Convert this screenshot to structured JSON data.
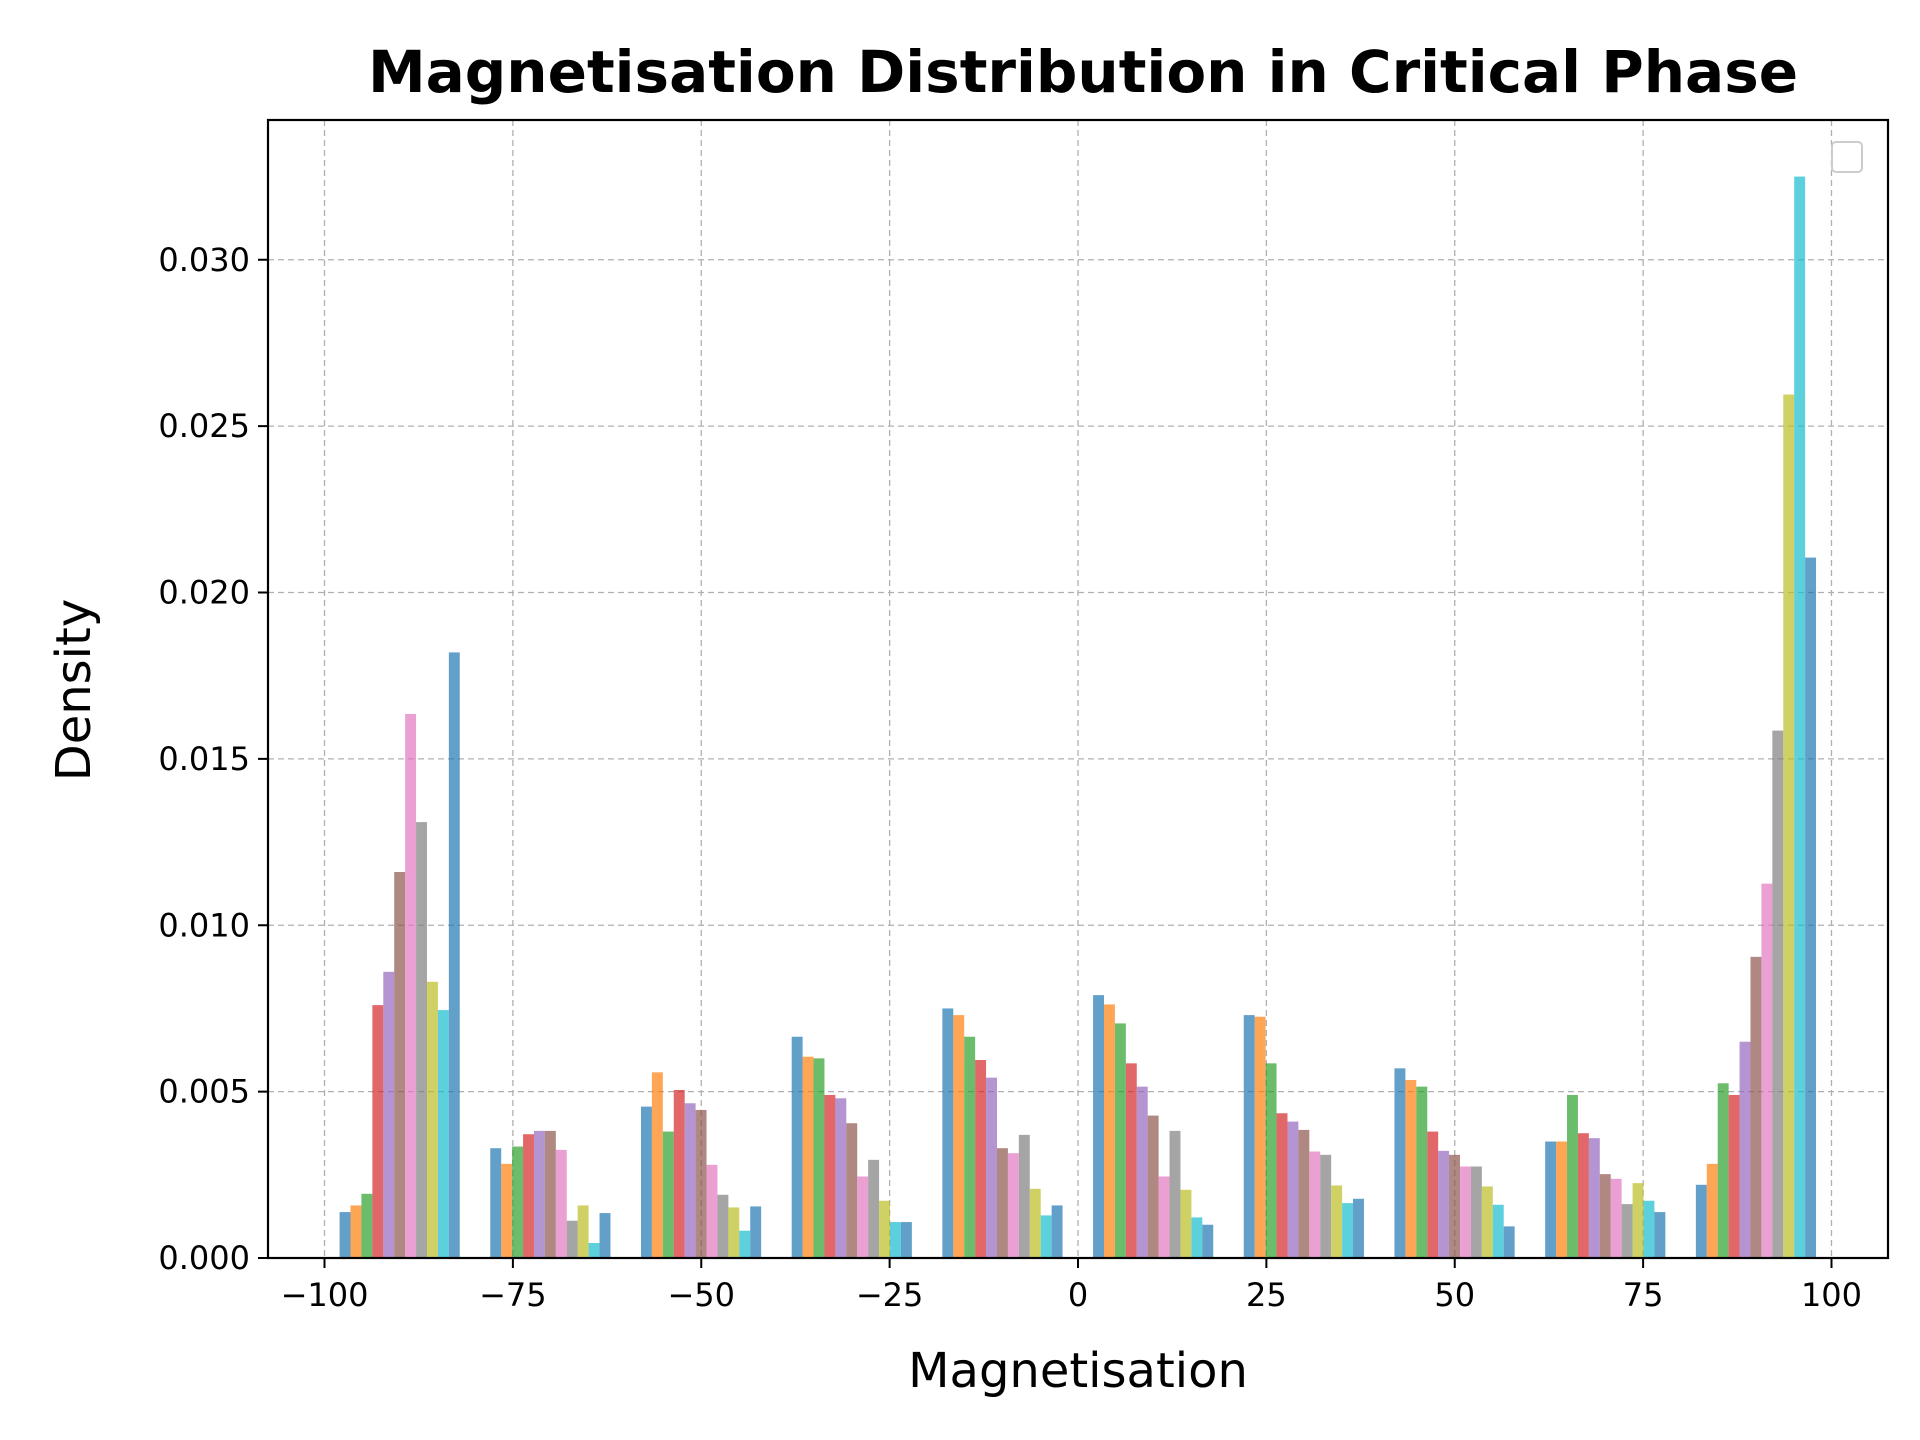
{
  "chart_data": {
    "type": "bar",
    "title": "Magnetisation Distribution in Critical Phase",
    "xlabel": "Magnetisation",
    "ylabel": "Density",
    "xlim": [
      -107.5,
      107.5
    ],
    "ylim": [
      0,
      0.0342
    ],
    "xticks": [
      -100,
      -75,
      -50,
      -25,
      0,
      25,
      50,
      75,
      100
    ],
    "xtick_labels": [
      "−100",
      "−75",
      "−50",
      "−25",
      "0",
      "25",
      "50",
      "75",
      "100"
    ],
    "yticks": [
      0,
      0.005,
      0.01,
      0.015,
      0.02,
      0.025,
      0.03
    ],
    "ytick_labels": [
      "0.000",
      "0.005",
      "0.010",
      "0.015",
      "0.020",
      "0.025",
      "0.030"
    ],
    "grid": true,
    "legend": {
      "placement": "top-right",
      "entries": []
    },
    "bin_starts": [
      -98,
      -78,
      -58,
      -38,
      -18,
      2,
      22,
      42,
      62,
      82
    ],
    "bar_width": 1.45,
    "series": [
      {
        "color": "#1f77b4",
        "values": [
          0.00138,
          0.0033,
          0.00455,
          0.00665,
          0.0075,
          0.0079,
          0.0073,
          0.0057,
          0.0035,
          0.0022
        ]
      },
      {
        "color": "#ff7f0e",
        "values": [
          0.00158,
          0.00283,
          0.00558,
          0.00605,
          0.0073,
          0.00762,
          0.00725,
          0.00535,
          0.0035,
          0.00283
        ]
      },
      {
        "color": "#2ca02c",
        "values": [
          0.00193,
          0.00335,
          0.0038,
          0.006,
          0.00665,
          0.00705,
          0.00585,
          0.00515,
          0.0049,
          0.00525
        ]
      },
      {
        "color": "#d62728",
        "values": [
          0.0076,
          0.00372,
          0.00505,
          0.0049,
          0.00595,
          0.00585,
          0.00435,
          0.0038,
          0.00375,
          0.0049
        ]
      },
      {
        "color": "#9467bd",
        "values": [
          0.0086,
          0.00382,
          0.00465,
          0.0048,
          0.00542,
          0.00515,
          0.0041,
          0.00322,
          0.0036,
          0.0065
        ]
      },
      {
        "color": "#8c564b",
        "values": [
          0.0116,
          0.00382,
          0.00445,
          0.00405,
          0.0033,
          0.00428,
          0.00385,
          0.0031,
          0.00252,
          0.00905
        ]
      },
      {
        "color": "#e377c2",
        "values": [
          0.01635,
          0.00325,
          0.0028,
          0.00245,
          0.00315,
          0.00245,
          0.0032,
          0.00275,
          0.00238,
          0.01125
        ]
      },
      {
        "color": "#7f7f7f",
        "values": [
          0.0131,
          0.00112,
          0.0019,
          0.00295,
          0.0037,
          0.00382,
          0.0031,
          0.00275,
          0.00162,
          0.01585
        ]
      },
      {
        "color": "#bcbd22",
        "values": [
          0.0083,
          0.00158,
          0.00152,
          0.00172,
          0.00208,
          0.00205,
          0.00218,
          0.00215,
          0.00225,
          0.02595
        ]
      },
      {
        "color": "#17becf",
        "values": [
          0.00745,
          0.00045,
          0.00082,
          0.00108,
          0.00128,
          0.00122,
          0.00165,
          0.0016,
          0.00172,
          0.0325
        ]
      },
      {
        "color": "#1f77b4",
        "values": [
          0.0182,
          0.00135,
          0.00155,
          0.00108,
          0.00158,
          0.001,
          0.00178,
          0.00095,
          0.00138,
          0.02105
        ]
      }
    ]
  }
}
